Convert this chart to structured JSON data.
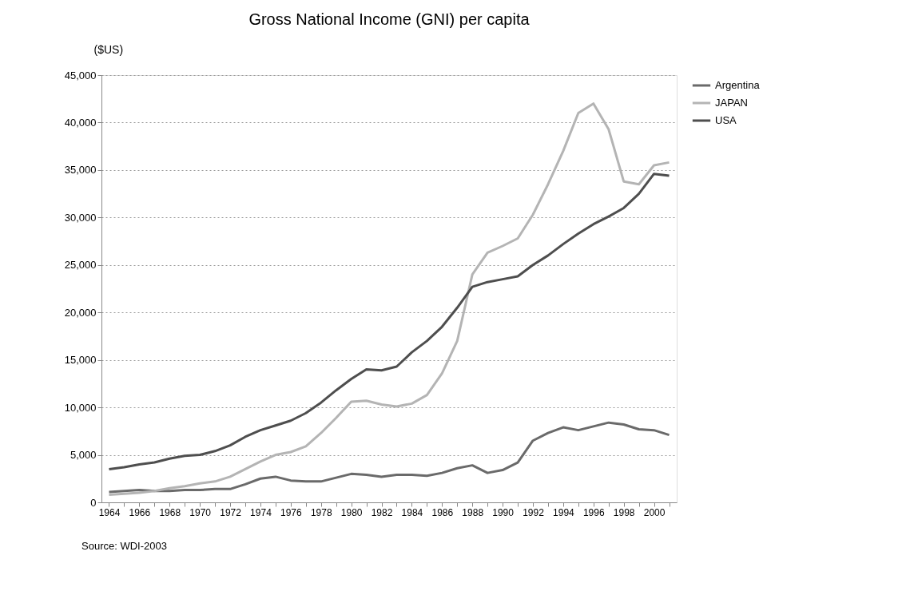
{
  "chart_data": {
    "type": "line",
    "title": "Gross National Income (GNI)  per capita",
    "ylabel": "($US)",
    "categories": [
      "1964",
      null,
      "1966",
      null,
      "1968",
      null,
      "1970",
      null,
      "1972",
      null,
      "1974",
      null,
      "1976",
      null,
      "1978",
      null,
      "1980",
      null,
      "1982",
      null,
      "1984",
      null,
      "1986",
      null,
      "1988",
      null,
      "1990",
      null,
      "1992",
      null,
      "1994",
      null,
      "1996",
      null,
      "1998",
      null,
      "2000",
      null
    ],
    "series": [
      {
        "name": "Argentina",
        "color": "#6a6a6a",
        "values": [
          1100,
          1200,
          1300,
          1200,
          1200,
          1300,
          1300,
          1400,
          1400,
          1900,
          2500,
          2700,
          2300,
          2200,
          2200,
          2600,
          3000,
          2900,
          2700,
          2900,
          2900,
          2800,
          3100,
          3600,
          3900,
          3100,
          3400,
          4200,
          6500,
          7300,
          7900,
          7600,
          8000,
          8400,
          8200,
          7700,
          7600,
          7100
        ]
      },
      {
        "name": "JAPAN",
        "color": "#b4b4b4",
        "values": [
          800,
          900,
          1000,
          1200,
          1500,
          1700,
          2000,
          2200,
          2700,
          3500,
          4300,
          5000,
          5300,
          5900,
          7300,
          8900,
          10600,
          10700,
          10300,
          10100,
          10400,
          11300,
          13600,
          17000,
          24000,
          26300,
          27000,
          27800,
          30300,
          33500,
          37000,
          41000,
          42000,
          39300,
          33800,
          33500,
          35500,
          35800
        ]
      },
      {
        "name": "USA",
        "color": "#4e4e4e",
        "values": [
          3500,
          3700,
          4000,
          4200,
          4600,
          4900,
          5000,
          5400,
          6000,
          6900,
          7600,
          8100,
          8600,
          9400,
          10500,
          11800,
          13000,
          14000,
          13900,
          14300,
          15800,
          17000,
          18500,
          20500,
          22700,
          23200,
          23500,
          23800,
          25000,
          26000,
          27200,
          28300,
          29300,
          30100,
          31000,
          32500,
          34600,
          34400
        ]
      }
    ],
    "ylim": [
      0,
      45000
    ],
    "yticks": [
      0,
      {
        "value": 5000,
        "label": "5,000"
      },
      {
        "value": 10000,
        "label": "10,000"
      },
      {
        "value": 15000,
        "label": "15,000"
      },
      {
        "value": 20000,
        "label": "20,000"
      },
      {
        "value": 25000,
        "label": "25,000"
      },
      {
        "value": 30000,
        "label": "30,000"
      },
      {
        "value": 35000,
        "label": "35,000"
      },
      {
        "value": 40000,
        "label": "40,000"
      },
      {
        "value": 45000,
        "label": "45,000"
      }
    ],
    "grid": "y",
    "legend": "right",
    "line_style": "solid",
    "marker": "none",
    "annotations": [
      "Source: WDI-2003"
    ]
  }
}
